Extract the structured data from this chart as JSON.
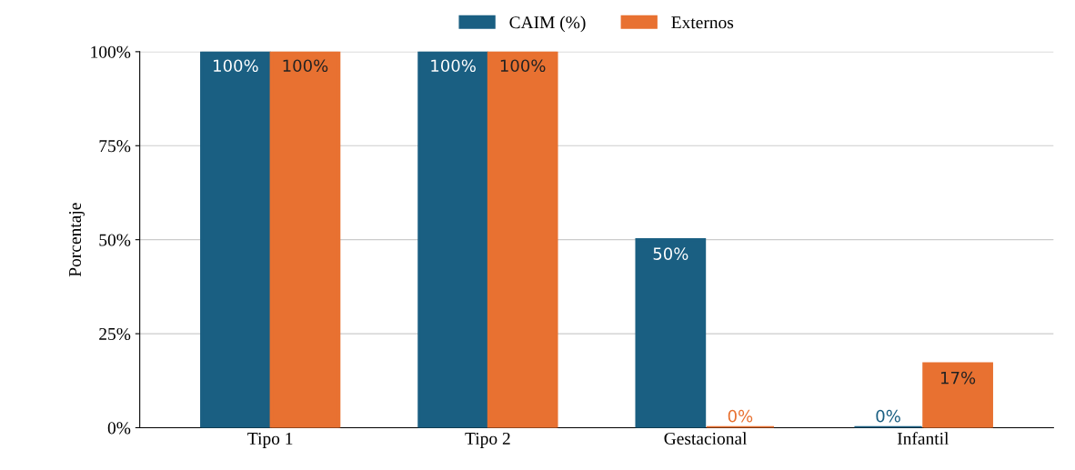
{
  "chart_data": {
    "type": "bar",
    "ylabel": "Porcentaje",
    "categories": [
      "Tipo 1",
      "Tipo 2",
      "Gestacional",
      "Infantil"
    ],
    "series": [
      {
        "name": "CAIM (%)",
        "color": "#1a5f82",
        "values": [
          100,
          100,
          50,
          0
        ],
        "value_labels": [
          "100%",
          "100%",
          "50%",
          "0%"
        ]
      },
      {
        "name": "Externos",
        "color": "#e87131",
        "values": [
          100,
          100,
          0,
          17
        ],
        "value_labels": [
          "100%",
          "100%",
          "0%",
          "17%"
        ]
      }
    ],
    "ylim": [
      0,
      100
    ],
    "yticks": [
      {
        "value": 0,
        "label": "0%"
      },
      {
        "value": 25,
        "label": "25%"
      },
      {
        "value": 50,
        "label": "50%"
      },
      {
        "value": 75,
        "label": "75%"
      },
      {
        "value": 100,
        "label": "100%"
      }
    ],
    "grid": "y",
    "legend": "top"
  }
}
